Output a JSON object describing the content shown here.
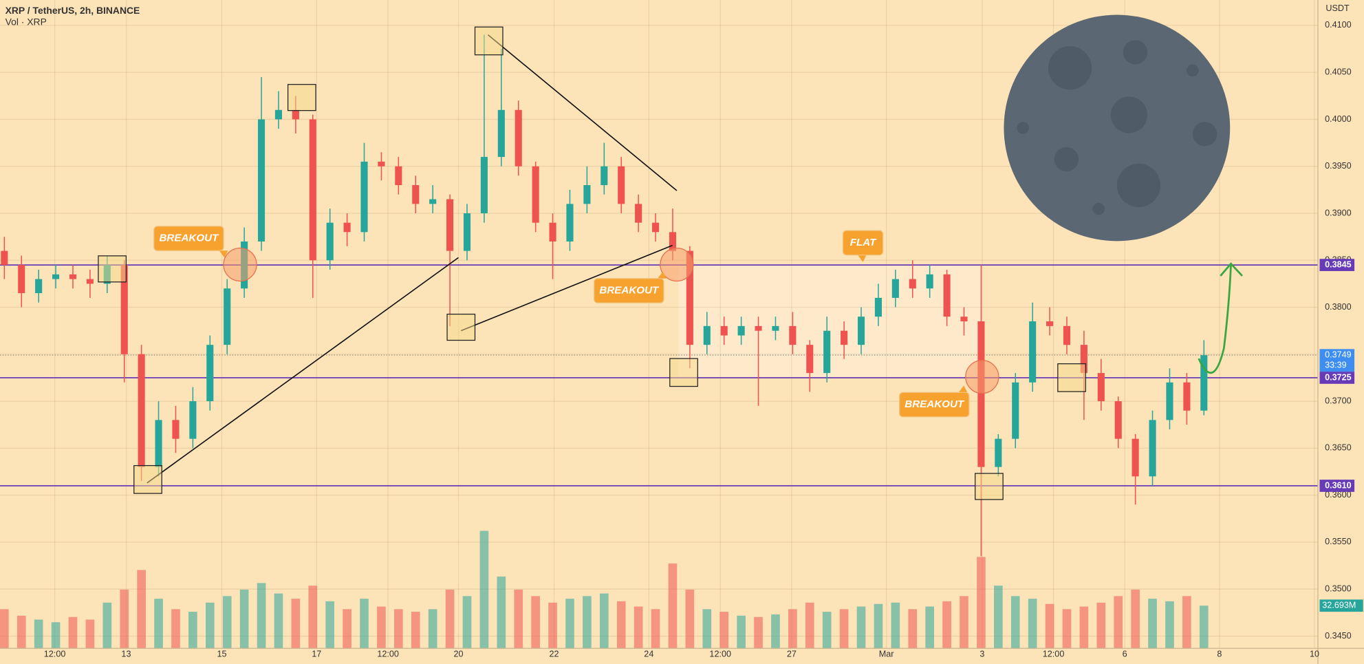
{
  "chart_data": {
    "type": "candlestick",
    "title": "XRP / TetherUS, 2h, BINANCE",
    "subtitle": "Vol · XRP",
    "y_axis_label": "USDT",
    "ylim": [
      0.3437,
      0.4127
    ],
    "yticks": [
      {
        "value": 0.345,
        "label": "0.3450"
      },
      {
        "value": 0.35,
        "label": "0.3500"
      },
      {
        "value": 0.355,
        "label": "0.3550"
      },
      {
        "value": 0.36,
        "label": "0.3600"
      },
      {
        "value": 0.365,
        "label": "0.3650"
      },
      {
        "value": 0.37,
        "label": "0.3700"
      },
      {
        "value": 0.375,
        "label": "0.3750"
      },
      {
        "value": 0.38,
        "label": "0.3800"
      },
      {
        "value": 0.385,
        "label": "0.3850"
      },
      {
        "value": 0.39,
        "label": "0.3900"
      },
      {
        "value": 0.395,
        "label": "0.3950"
      },
      {
        "value": 0.4,
        "label": "0.4000"
      },
      {
        "value": 0.405,
        "label": "0.4050"
      },
      {
        "value": 0.41,
        "label": "0.4100"
      }
    ],
    "xlim": [
      -0.254,
      76.65
    ],
    "xticks": [
      {
        "value": 2.94,
        "label": "12:00"
      },
      {
        "value": 7.11,
        "label": "13"
      },
      {
        "value": 12.69,
        "label": "15"
      },
      {
        "value": 18.22,
        "label": "17"
      },
      {
        "value": 22.39,
        "label": "12:00"
      },
      {
        "value": 26.5,
        "label": "20"
      },
      {
        "value": 32.08,
        "label": "22"
      },
      {
        "value": 37.61,
        "label": "24"
      },
      {
        "value": 41.78,
        "label": "12:00"
      },
      {
        "value": 45.94,
        "label": "27"
      },
      {
        "value": 51.47,
        "label": "Mar"
      },
      {
        "value": 57.06,
        "label": "3"
      },
      {
        "value": 61.22,
        "label": "12:00"
      },
      {
        "value": 65.38,
        "label": "6"
      },
      {
        "value": 70.91,
        "label": "8"
      },
      {
        "value": 76.45,
        "label": "10"
      }
    ],
    "grid": true,
    "up_color": "#26a69a",
    "down_color": "#ef5350",
    "open": [
      0.386,
      0.3845,
      0.3815,
      0.383,
      0.3835,
      0.383,
      0.3825,
      0.3845,
      0.375,
      0.363,
      0.368,
      0.366,
      0.37,
      0.376,
      0.382,
      0.387,
      0.4,
      0.401,
      0.4,
      0.385,
      0.389,
      0.388,
      0.3955,
      0.395,
      0.393,
      0.391,
      0.3915,
      0.386,
      0.39,
      0.396,
      0.401,
      0.395,
      0.389,
      0.387,
      0.391,
      0.393,
      0.395,
      0.391,
      0.389,
      0.388,
      0.386,
      0.376,
      0.378,
      0.377,
      0.378,
      0.3775,
      0.378,
      0.376,
      0.373,
      0.3775,
      0.376,
      0.379,
      0.381,
      0.383,
      0.382,
      0.3835,
      0.379,
      0.3785,
      0.363,
      0.366,
      0.372,
      0.3785,
      0.378,
      0.376,
      0.373,
      0.37,
      0.366,
      0.362,
      0.368,
      0.372,
      0.369
    ],
    "high": [
      0.3875,
      0.3855,
      0.384,
      0.3845,
      0.3845,
      0.384,
      0.3855,
      0.385,
      0.376,
      0.37,
      0.3695,
      0.3715,
      0.377,
      0.383,
      0.3885,
      0.4045,
      0.403,
      0.4025,
      0.4005,
      0.3905,
      0.39,
      0.3975,
      0.3965,
      0.396,
      0.394,
      0.393,
      0.392,
      0.391,
      0.409,
      0.4075,
      0.402,
      0.3955,
      0.39,
      0.3925,
      0.395,
      0.3975,
      0.396,
      0.392,
      0.39,
      0.3905,
      0.3865,
      0.3795,
      0.379,
      0.379,
      0.379,
      0.379,
      0.3795,
      0.3765,
      0.379,
      0.3785,
      0.38,
      0.3825,
      0.384,
      0.385,
      0.3845,
      0.384,
      0.38,
      0.3845,
      0.3665,
      0.373,
      0.3805,
      0.38,
      0.379,
      0.3775,
      0.3745,
      0.3705,
      0.3665,
      0.369,
      0.3735,
      0.373,
      0.3765
    ],
    "low": [
      0.383,
      0.38,
      0.3805,
      0.382,
      0.382,
      0.381,
      0.3815,
      0.372,
      0.3615,
      0.362,
      0.3645,
      0.365,
      0.369,
      0.375,
      0.381,
      0.386,
      0.399,
      0.3985,
      0.381,
      0.384,
      0.3865,
      0.387,
      0.3935,
      0.392,
      0.39,
      0.39,
      0.378,
      0.385,
      0.389,
      0.395,
      0.394,
      0.388,
      0.383,
      0.386,
      0.39,
      0.392,
      0.39,
      0.388,
      0.387,
      0.385,
      0.3735,
      0.375,
      0.376,
      0.376,
      0.3695,
      0.3765,
      0.375,
      0.371,
      0.372,
      0.3745,
      0.375,
      0.378,
      0.38,
      0.381,
      0.381,
      0.378,
      0.377,
      0.3535,
      0.362,
      0.365,
      0.371,
      0.377,
      0.375,
      0.368,
      0.369,
      0.365,
      0.359,
      0.361,
      0.367,
      0.3675,
      0.3685
    ],
    "close": [
      0.3845,
      0.3815,
      0.383,
      0.3835,
      0.383,
      0.3825,
      0.3845,
      0.375,
      0.363,
      0.368,
      0.366,
      0.37,
      0.376,
      0.382,
      0.387,
      0.4,
      0.401,
      0.4,
      0.385,
      0.389,
      0.388,
      0.3955,
      0.395,
      0.393,
      0.391,
      0.3915,
      0.386,
      0.39,
      0.396,
      0.401,
      0.395,
      0.389,
      0.387,
      0.391,
      0.393,
      0.395,
      0.391,
      0.389,
      0.388,
      0.386,
      0.376,
      0.378,
      0.377,
      0.378,
      0.3775,
      0.378,
      0.376,
      0.373,
      0.3775,
      0.376,
      0.379,
      0.381,
      0.383,
      0.382,
      0.3835,
      0.379,
      0.3785,
      0.363,
      0.366,
      0.372,
      0.3785,
      0.378,
      0.376,
      0.373,
      0.37,
      0.366,
      0.362,
      0.368,
      0.372,
      0.369,
      0.3749
    ],
    "volume": [
      30,
      25,
      22,
      20,
      24,
      22,
      35,
      45,
      60,
      38,
      30,
      28,
      35,
      40,
      45,
      50,
      42,
      38,
      48,
      36,
      30,
      38,
      32,
      30,
      28,
      30,
      45,
      40,
      90,
      55,
      45,
      40,
      35,
      38,
      40,
      42,
      36,
      32,
      30,
      65,
      45,
      30,
      28,
      25,
      24,
      26,
      30,
      35,
      28,
      30,
      32,
      34,
      35,
      30,
      32,
      36,
      40,
      70,
      48,
      40,
      38,
      34,
      30,
      32,
      35,
      40,
      45,
      38,
      36,
      40,
      32.693
    ],
    "last_volume_label": "32.693M",
    "levels": [
      {
        "value": 0.3845,
        "label": "0.3845"
      },
      {
        "value": 0.3725,
        "label": "0.3725"
      },
      {
        "value": 0.361,
        "label": "0.3610"
      }
    ],
    "level_color": "#673ab7",
    "last_price": 0.3749,
    "countdown": "33:39",
    "annotations": [
      "BREAKOUT",
      "BREAKOUT",
      "FLAT",
      "BREAKOUT"
    ]
  }
}
